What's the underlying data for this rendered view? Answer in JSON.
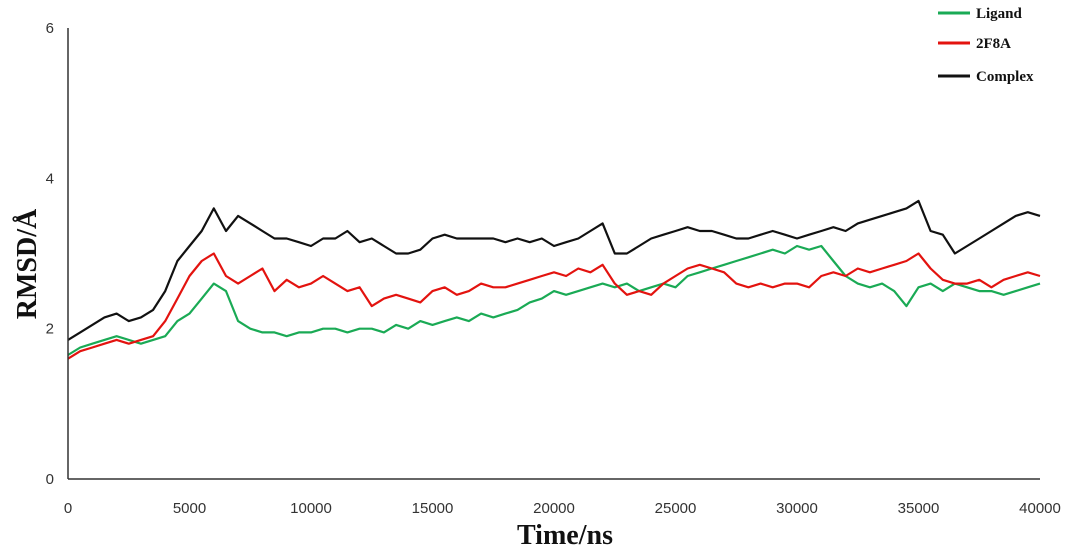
{
  "chart_data": {
    "type": "line",
    "xlabel": "Time/ns",
    "ylabel": "RMSD/Å",
    "xlim": [
      0,
      40000
    ],
    "ylim": [
      0,
      6
    ],
    "x_ticks": [
      "0",
      "5000",
      "10000",
      "15000",
      "20000",
      "25000",
      "30000",
      "35000",
      "40000"
    ],
    "y_ticks": [
      "0",
      "2",
      "4",
      "6"
    ],
    "grid": false,
    "legend_position": "top-right",
    "x": [
      0,
      500,
      1000,
      1500,
      2000,
      2500,
      3000,
      3500,
      4000,
      4500,
      5000,
      5500,
      6000,
      6500,
      7000,
      7500,
      8000,
      8500,
      9000,
      9500,
      10000,
      10500,
      11000,
      11500,
      12000,
      12500,
      13000,
      13500,
      14000,
      14500,
      15000,
      15500,
      16000,
      16500,
      17000,
      17500,
      18000,
      18500,
      19000,
      19500,
      20000,
      20500,
      21000,
      21500,
      22000,
      22500,
      23000,
      23500,
      24000,
      24500,
      25000,
      25500,
      26000,
      26500,
      27000,
      27500,
      28000,
      28500,
      29000,
      29500,
      30000,
      30500,
      31000,
      31500,
      32000,
      32500,
      33000,
      33500,
      34000,
      34500,
      35000,
      35500,
      36000,
      36500,
      37000,
      37500,
      38000,
      38500,
      39000,
      39500,
      40000
    ],
    "series": [
      {
        "name": "Ligand",
        "color": "#1aaa55",
        "values": [
          1.65,
          1.75,
          1.8,
          1.85,
          1.9,
          1.85,
          1.8,
          1.85,
          1.9,
          2.1,
          2.2,
          2.4,
          2.6,
          2.5,
          2.1,
          2.0,
          1.95,
          1.95,
          1.9,
          1.95,
          1.95,
          2.0,
          2.0,
          1.95,
          2.0,
          2.0,
          1.95,
          2.05,
          2.0,
          2.1,
          2.05,
          2.1,
          2.15,
          2.1,
          2.2,
          2.15,
          2.2,
          2.25,
          2.35,
          2.4,
          2.5,
          2.45,
          2.5,
          2.55,
          2.6,
          2.55,
          2.6,
          2.5,
          2.55,
          2.6,
          2.55,
          2.7,
          2.75,
          2.8,
          2.85,
          2.9,
          2.95,
          3.0,
          3.05,
          3.0,
          3.1,
          3.05,
          3.1,
          2.9,
          2.7,
          2.6,
          2.55,
          2.6,
          2.5,
          2.3,
          2.55,
          2.6,
          2.5,
          2.6,
          2.55,
          2.5,
          2.5,
          2.45,
          2.5,
          2.55,
          2.6
        ]
      },
      {
        "name": "2F8A",
        "color": "#e3130f",
        "values": [
          1.6,
          1.7,
          1.75,
          1.8,
          1.85,
          1.8,
          1.85,
          1.9,
          2.1,
          2.4,
          2.7,
          2.9,
          3.0,
          2.7,
          2.6,
          2.7,
          2.8,
          2.5,
          2.65,
          2.55,
          2.6,
          2.7,
          2.6,
          2.5,
          2.55,
          2.3,
          2.4,
          2.45,
          2.4,
          2.35,
          2.5,
          2.55,
          2.45,
          2.5,
          2.6,
          2.55,
          2.55,
          2.6,
          2.65,
          2.7,
          2.75,
          2.7,
          2.8,
          2.75,
          2.85,
          2.6,
          2.45,
          2.5,
          2.45,
          2.6,
          2.7,
          2.8,
          2.85,
          2.8,
          2.75,
          2.6,
          2.55,
          2.6,
          2.55,
          2.6,
          2.6,
          2.55,
          2.7,
          2.75,
          2.7,
          2.8,
          2.75,
          2.8,
          2.85,
          2.9,
          3.0,
          2.8,
          2.65,
          2.6,
          2.6,
          2.65,
          2.55,
          2.65,
          2.7,
          2.75,
          2.7
        ]
      },
      {
        "name": "Complex",
        "color": "#111111",
        "values": [
          1.85,
          1.95,
          2.05,
          2.15,
          2.2,
          2.1,
          2.15,
          2.25,
          2.5,
          2.9,
          3.1,
          3.3,
          3.6,
          3.3,
          3.5,
          3.4,
          3.3,
          3.2,
          3.2,
          3.15,
          3.1,
          3.2,
          3.2,
          3.3,
          3.15,
          3.2,
          3.1,
          3.0,
          3.0,
          3.05,
          3.2,
          3.25,
          3.2,
          3.2,
          3.2,
          3.2,
          3.15,
          3.2,
          3.15,
          3.2,
          3.1,
          3.15,
          3.2,
          3.3,
          3.4,
          3.0,
          3.0,
          3.1,
          3.2,
          3.25,
          3.3,
          3.35,
          3.3,
          3.3,
          3.25,
          3.2,
          3.2,
          3.25,
          3.3,
          3.25,
          3.2,
          3.25,
          3.3,
          3.35,
          3.3,
          3.4,
          3.45,
          3.5,
          3.55,
          3.6,
          3.7,
          3.3,
          3.25,
          3.0,
          3.1,
          3.2,
          3.3,
          3.4,
          3.5,
          3.55,
          3.5
        ]
      }
    ]
  }
}
